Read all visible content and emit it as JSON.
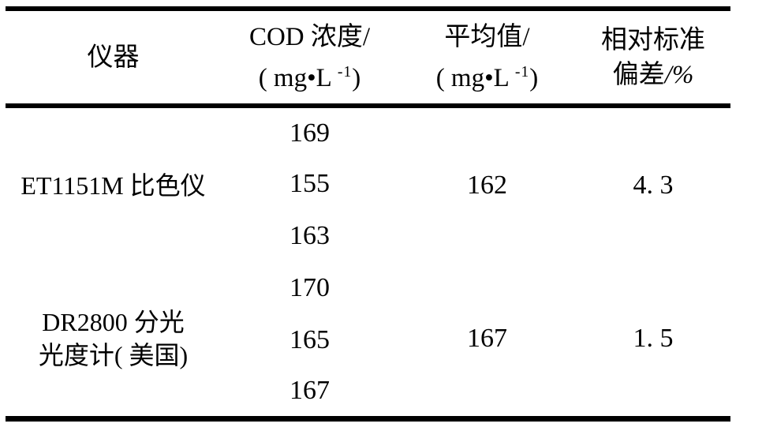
{
  "colors": {
    "text": "#000000",
    "background": "#ffffff",
    "rule": "#000000"
  },
  "table": {
    "header": {
      "instrument": "仪器",
      "cod_line1": "COD 浓度/",
      "avg_line1": "平均值/",
      "unit_open": "( mg•L",
      "unit_sup": "-1",
      "unit_close": ")",
      "rsd_line1": "相对标准",
      "rsd_line2_label": "偏差",
      "rsd_line2_unit": "/%"
    },
    "groups": [
      {
        "instrument_lines": [
          "ET1151M 比色仪"
        ],
        "cod_values": [
          "169",
          "155",
          "163"
        ],
        "average": "162",
        "rsd": "4. 3"
      },
      {
        "instrument_lines": [
          "DR2800 分光",
          "光度计( 美国)"
        ],
        "cod_values": [
          "170",
          "165",
          "167"
        ],
        "average": "167",
        "rsd": "1. 5"
      }
    ]
  }
}
